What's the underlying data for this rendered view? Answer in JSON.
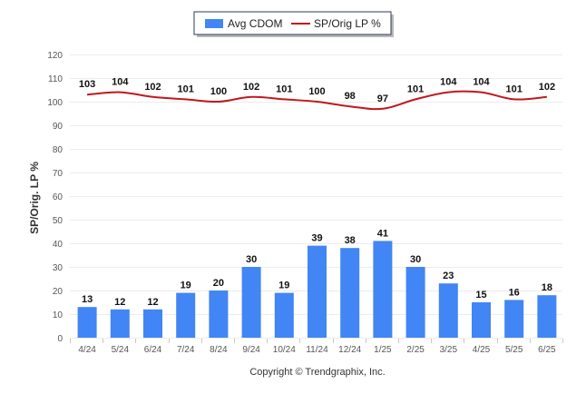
{
  "chart_data": {
    "type": "bar",
    "categories": [
      "4/24",
      "5/24",
      "6/24",
      "7/24",
      "8/24",
      "9/24",
      "10/24",
      "11/24",
      "12/24",
      "1/25",
      "2/25",
      "3/25",
      "4/25",
      "5/25",
      "6/25"
    ],
    "series": [
      {
        "name": "Avg CDOM",
        "type": "bar",
        "color": "#4285f4",
        "values": [
          13,
          12,
          12,
          19,
          20,
          30,
          19,
          39,
          38,
          41,
          30,
          23,
          15,
          16,
          18
        ]
      },
      {
        "name": "SP/Orig LP %",
        "type": "line",
        "color": "#c0181e",
        "values": [
          103,
          104,
          102,
          101,
          100,
          102,
          101,
          100,
          98,
          97,
          101,
          104,
          104,
          101,
          102
        ]
      }
    ],
    "ylabel": "SP/Orig. LP %",
    "xlabel": "",
    "ylim": [
      0,
      120
    ],
    "yticks": [
      0,
      10,
      20,
      30,
      40,
      50,
      60,
      70,
      80,
      90,
      100,
      110,
      120
    ],
    "grid": true,
    "legend_position": "top-center"
  },
  "footer": "Copyright © Trendgraphix, Inc."
}
